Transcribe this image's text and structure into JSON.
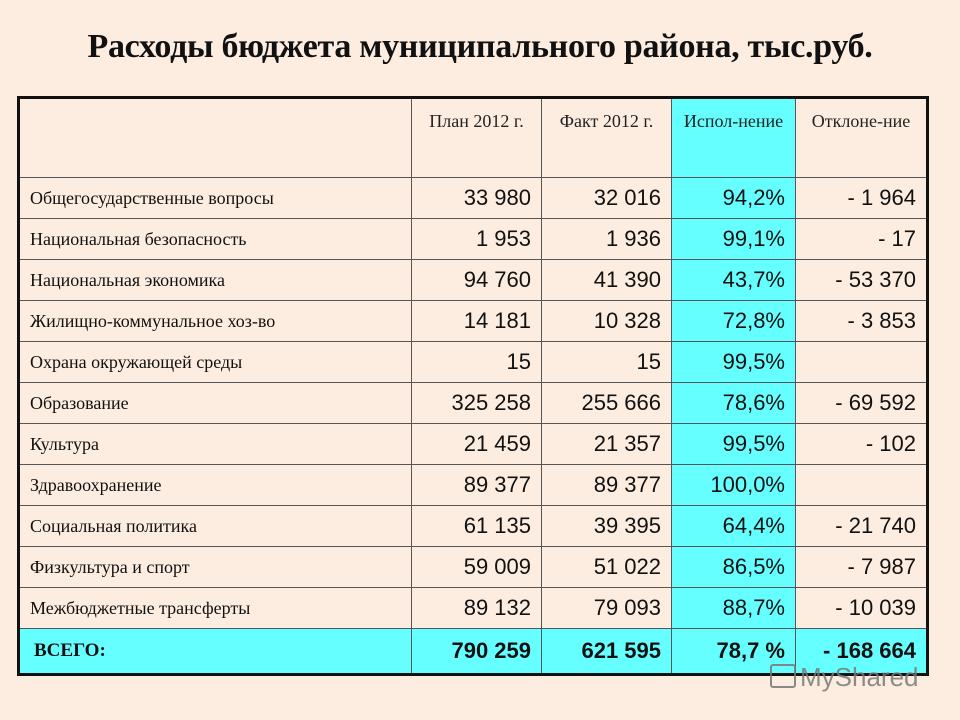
{
  "title": "Расходы бюджета муниципального района, тыс.руб.",
  "table": {
    "headers": {
      "label": "",
      "plan": "План 2012 г.",
      "fact": "Факт 2012 г.",
      "exec": "Испол-нение",
      "dev": "Отклоне-ние"
    },
    "rows": [
      {
        "label": "Общегосударственные вопросы",
        "plan": "33 980",
        "fact": "32 016",
        "exec": "94,2%",
        "dev": "- 1 964"
      },
      {
        "label": "Национальная безопасность",
        "plan": "1 953",
        "fact": "1 936",
        "exec": "99,1%",
        "dev": "- 17"
      },
      {
        "label": "Национальная экономика",
        "plan": "94 760",
        "fact": "41 390",
        "exec": "43,7%",
        "dev": "- 53 370"
      },
      {
        "label": "Жилищно-коммунальное хоз-во",
        "plan": "14 181",
        "fact": "10 328",
        "exec": "72,8%",
        "dev": "- 3 853"
      },
      {
        "label": "Охрана окружающей среды",
        "plan": "15",
        "fact": "15",
        "exec": "99,5%",
        "dev": ""
      },
      {
        "label": "Образование",
        "plan": "325 258",
        "fact": "255 666",
        "exec": "78,6%",
        "dev": "- 69 592"
      },
      {
        "label": "Культура",
        "plan": "21 459",
        "fact": "21 357",
        "exec": "99,5%",
        "dev": "- 102"
      },
      {
        "label": "Здравоохранение",
        "plan": "89 377",
        "fact": "89 377",
        "exec": "100,0%",
        "dev": ""
      },
      {
        "label": "Социальная политика",
        "plan": "61 135",
        "fact": "39 395",
        "exec": "64,4%",
        "dev": "- 21 740"
      },
      {
        "label": "Физкультура и спорт",
        "plan": "59 009",
        "fact": "51 022",
        "exec": "86,5%",
        "dev": "- 7 987"
      },
      {
        "label": "Межбюджетные трансферты",
        "plan": "89 132",
        "fact": "79 093",
        "exec": "88,7%",
        "dev": "- 10 039"
      }
    ],
    "total": {
      "label": "ВСЕГО:",
      "plan": "790 259",
      "fact": "621 595",
      "exec": "78,7 %",
      "dev": "- 168 664"
    }
  },
  "colors": {
    "background": "#fcede0",
    "highlight": "#66ffff"
  },
  "watermark": "MyShared"
}
